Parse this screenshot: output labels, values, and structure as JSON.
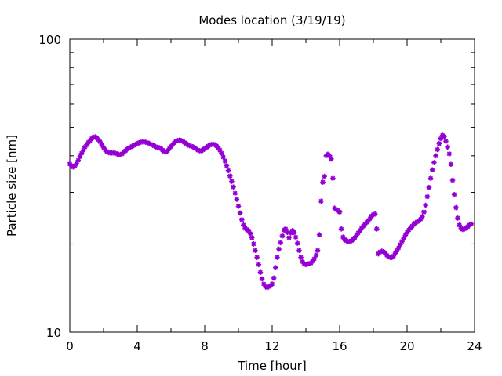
{
  "chart_data": {
    "type": "scatter",
    "title": "Modes location (3/19/19)",
    "xlabel": "Time [hour]",
    "ylabel": "Particle size [nm]",
    "xlim": [
      0,
      24
    ],
    "ylim": [
      10,
      100
    ],
    "y_scale": "log",
    "grid": false,
    "legend": "none",
    "x_ticks": [
      0,
      4,
      8,
      12,
      16,
      20,
      24
    ],
    "x_tick_labels": [
      "0",
      "4",
      "8",
      "12",
      "16",
      "20",
      "24"
    ],
    "y_ticks": [
      10,
      100
    ],
    "y_tick_labels": [
      "10",
      "100"
    ],
    "marker_color": "#9400d3",
    "series": [
      {
        "points": [
          [
            0.0,
            37.5
          ],
          [
            0.1,
            37.0
          ],
          [
            0.2,
            36.6
          ],
          [
            0.3,
            36.9
          ],
          [
            0.4,
            37.6
          ],
          [
            0.5,
            38.6
          ],
          [
            0.6,
            39.7
          ],
          [
            0.7,
            40.8
          ],
          [
            0.8,
            41.8
          ],
          [
            0.9,
            42.8
          ],
          [
            1.0,
            43.6
          ],
          [
            1.1,
            44.4
          ],
          [
            1.2,
            45.1
          ],
          [
            1.3,
            45.8
          ],
          [
            1.4,
            46.3
          ],
          [
            1.5,
            46.4
          ],
          [
            1.6,
            46.0
          ],
          [
            1.7,
            45.4
          ],
          [
            1.8,
            44.6
          ],
          [
            1.9,
            43.6
          ],
          [
            2.0,
            42.7
          ],
          [
            2.1,
            41.9
          ],
          [
            2.2,
            41.3
          ],
          [
            2.3,
            41.0
          ],
          [
            2.4,
            40.9
          ],
          [
            2.5,
            40.9
          ],
          [
            2.6,
            40.9
          ],
          [
            2.7,
            40.8
          ],
          [
            2.8,
            40.6
          ],
          [
            2.9,
            40.4
          ],
          [
            3.0,
            40.4
          ],
          [
            3.1,
            40.6
          ],
          [
            3.2,
            41.1
          ],
          [
            3.3,
            41.6
          ],
          [
            3.4,
            42.1
          ],
          [
            3.5,
            42.5
          ],
          [
            3.6,
            42.8
          ],
          [
            3.7,
            43.1
          ],
          [
            3.8,
            43.4
          ],
          [
            3.9,
            43.7
          ],
          [
            4.0,
            44.0
          ],
          [
            4.1,
            44.3
          ],
          [
            4.2,
            44.5
          ],
          [
            4.3,
            44.6
          ],
          [
            4.4,
            44.6
          ],
          [
            4.5,
            44.5
          ],
          [
            4.6,
            44.3
          ],
          [
            4.7,
            44.1
          ],
          [
            4.8,
            43.8
          ],
          [
            4.9,
            43.5
          ],
          [
            5.0,
            43.2
          ],
          [
            5.1,
            42.9
          ],
          [
            5.2,
            42.7
          ],
          [
            5.3,
            42.6
          ],
          [
            5.4,
            42.3
          ],
          [
            5.5,
            41.8
          ],
          [
            5.6,
            41.4
          ],
          [
            5.7,
            41.2
          ],
          [
            5.8,
            41.6
          ],
          [
            5.9,
            42.3
          ],
          [
            6.0,
            43.0
          ],
          [
            6.1,
            43.7
          ],
          [
            6.2,
            44.3
          ],
          [
            6.3,
            44.8
          ],
          [
            6.4,
            45.1
          ],
          [
            6.5,
            45.2
          ],
          [
            6.6,
            45.1
          ],
          [
            6.7,
            44.8
          ],
          [
            6.8,
            44.4
          ],
          [
            6.9,
            44.0
          ],
          [
            7.0,
            43.6
          ],
          [
            7.1,
            43.3
          ],
          [
            7.2,
            43.1
          ],
          [
            7.3,
            42.9
          ],
          [
            7.4,
            42.6
          ],
          [
            7.5,
            42.2
          ],
          [
            7.6,
            41.8
          ],
          [
            7.7,
            41.6
          ],
          [
            7.8,
            41.6
          ],
          [
            7.9,
            41.9
          ],
          [
            8.0,
            42.3
          ],
          [
            8.1,
            42.7
          ],
          [
            8.2,
            43.1
          ],
          [
            8.3,
            43.5
          ],
          [
            8.4,
            43.7
          ],
          [
            8.5,
            43.8
          ],
          [
            8.6,
            43.6
          ],
          [
            8.7,
            43.2
          ],
          [
            8.8,
            42.6
          ],
          [
            8.9,
            41.8
          ],
          [
            9.0,
            40.8
          ],
          [
            9.1,
            39.6
          ],
          [
            9.2,
            38.4
          ],
          [
            9.3,
            37.0
          ],
          [
            9.4,
            35.6
          ],
          [
            9.5,
            34.1
          ],
          [
            9.6,
            32.7
          ],
          [
            9.7,
            31.3
          ],
          [
            9.8,
            29.8
          ],
          [
            9.9,
            28.4
          ],
          [
            10.0,
            26.9
          ],
          [
            10.1,
            25.5
          ],
          [
            10.2,
            24.2
          ],
          [
            10.3,
            23.2
          ],
          [
            10.4,
            22.6
          ],
          [
            10.5,
            22.4
          ],
          [
            10.6,
            22.2
          ],
          [
            10.7,
            21.7
          ],
          [
            10.8,
            21.0
          ],
          [
            10.9,
            20.0
          ],
          [
            11.0,
            19.0
          ],
          [
            11.1,
            18.0
          ],
          [
            11.2,
            17.0
          ],
          [
            11.3,
            16.0
          ],
          [
            11.4,
            15.2
          ],
          [
            11.5,
            14.6
          ],
          [
            11.6,
            14.3
          ],
          [
            11.7,
            14.2
          ],
          [
            11.8,
            14.3
          ],
          [
            11.9,
            14.4
          ],
          [
            12.0,
            14.6
          ],
          [
            12.1,
            15.3
          ],
          [
            12.2,
            16.6
          ],
          [
            12.3,
            18.0
          ],
          [
            12.4,
            19.2
          ],
          [
            12.5,
            20.2
          ],
          [
            12.6,
            21.3
          ],
          [
            12.7,
            22.3
          ],
          [
            12.8,
            22.5
          ],
          [
            12.9,
            21.9
          ],
          [
            13.0,
            21.0
          ],
          [
            13.1,
            21.8
          ],
          [
            13.2,
            22.2
          ],
          [
            13.3,
            21.9
          ],
          [
            13.4,
            21.1
          ],
          [
            13.5,
            20.1
          ],
          [
            13.6,
            19.0
          ],
          [
            13.7,
            18.0
          ],
          [
            13.8,
            17.4
          ],
          [
            13.9,
            17.1
          ],
          [
            14.0,
            17.0
          ],
          [
            14.1,
            17.1
          ],
          [
            14.2,
            17.1
          ],
          [
            14.3,
            17.2
          ],
          [
            14.4,
            17.5
          ],
          [
            14.5,
            17.8
          ],
          [
            14.6,
            18.3
          ],
          [
            14.7,
            19.0
          ],
          [
            14.8,
            21.5
          ],
          [
            14.9,
            28.0
          ],
          [
            15.0,
            32.5
          ],
          [
            15.1,
            34.0
          ],
          [
            15.2,
            40.0
          ],
          [
            15.3,
            40.5
          ],
          [
            15.4,
            40.0
          ],
          [
            15.5,
            39.0
          ],
          [
            15.6,
            33.5
          ],
          [
            15.7,
            26.5
          ],
          [
            15.8,
            26.2
          ],
          [
            15.9,
            26.0
          ],
          [
            16.0,
            25.7
          ],
          [
            16.1,
            22.5
          ],
          [
            16.2,
            21.1
          ],
          [
            16.3,
            20.7
          ],
          [
            16.4,
            20.5
          ],
          [
            16.5,
            20.4
          ],
          [
            16.6,
            20.4
          ],
          [
            16.7,
            20.5
          ],
          [
            16.8,
            20.7
          ],
          [
            16.9,
            21.0
          ],
          [
            17.0,
            21.4
          ],
          [
            17.1,
            21.8
          ],
          [
            17.2,
            22.2
          ],
          [
            17.3,
            22.6
          ],
          [
            17.4,
            23.0
          ],
          [
            17.5,
            23.3
          ],
          [
            17.6,
            23.7
          ],
          [
            17.7,
            24.0
          ],
          [
            17.8,
            24.4
          ],
          [
            17.9,
            24.9
          ],
          [
            18.0,
            25.2
          ],
          [
            18.1,
            25.3
          ],
          [
            18.2,
            22.5
          ],
          [
            18.3,
            18.5
          ],
          [
            18.4,
            18.8
          ],
          [
            18.5,
            18.9
          ],
          [
            18.6,
            18.8
          ],
          [
            18.7,
            18.6
          ],
          [
            18.8,
            18.3
          ],
          [
            18.9,
            18.1
          ],
          [
            19.0,
            18.0
          ],
          [
            19.1,
            18.0
          ],
          [
            19.2,
            18.2
          ],
          [
            19.3,
            18.6
          ],
          [
            19.4,
            19.0
          ],
          [
            19.5,
            19.4
          ],
          [
            19.6,
            19.9
          ],
          [
            19.7,
            20.4
          ],
          [
            19.8,
            20.9
          ],
          [
            19.9,
            21.4
          ],
          [
            20.0,
            21.9
          ],
          [
            20.1,
            22.3
          ],
          [
            20.2,
            22.7
          ],
          [
            20.3,
            23.0
          ],
          [
            20.4,
            23.3
          ],
          [
            20.5,
            23.6
          ],
          [
            20.6,
            23.8
          ],
          [
            20.7,
            24.0
          ],
          [
            20.8,
            24.3
          ],
          [
            20.9,
            24.8
          ],
          [
            21.0,
            25.7
          ],
          [
            21.1,
            27.1
          ],
          [
            21.2,
            29.0
          ],
          [
            21.3,
            31.2
          ],
          [
            21.4,
            33.5
          ],
          [
            21.5,
            35.8
          ],
          [
            21.6,
            37.9
          ],
          [
            21.7,
            40.0
          ],
          [
            21.8,
            42.0
          ],
          [
            21.9,
            44.0
          ],
          [
            22.0,
            45.8
          ],
          [
            22.1,
            47.0
          ],
          [
            22.2,
            46.5
          ],
          [
            22.3,
            44.8
          ],
          [
            22.4,
            42.8
          ],
          [
            22.5,
            40.6
          ],
          [
            22.6,
            37.4
          ],
          [
            22.7,
            33.0
          ],
          [
            22.8,
            29.5
          ],
          [
            22.9,
            26.6
          ],
          [
            23.0,
            24.5
          ],
          [
            23.1,
            23.2
          ],
          [
            23.2,
            22.6
          ],
          [
            23.3,
            22.4
          ],
          [
            23.4,
            22.5
          ],
          [
            23.5,
            22.7
          ],
          [
            23.6,
            22.9
          ],
          [
            23.7,
            23.2
          ],
          [
            23.8,
            23.4
          ]
        ]
      }
    ]
  }
}
